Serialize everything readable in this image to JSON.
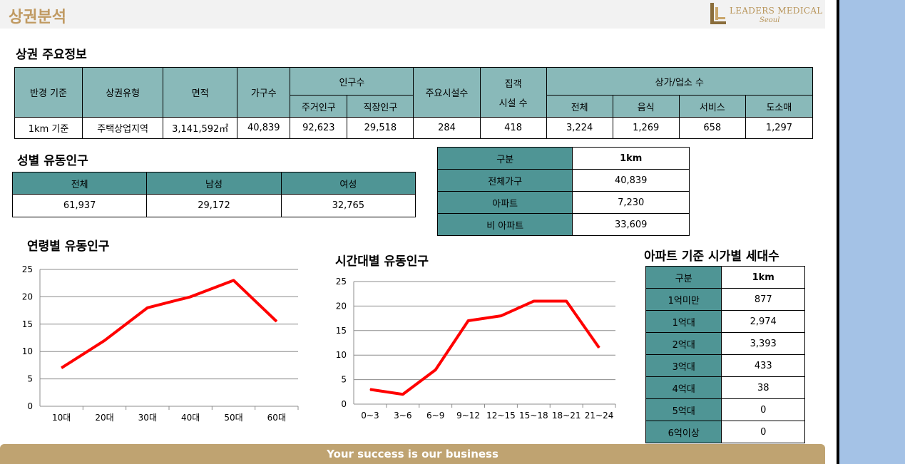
{
  "header": {
    "title": "상권분석",
    "logo_text": "LEADERS MEDICAL",
    "logo_sub": "Seoul"
  },
  "main_info": {
    "title": "상권 주요정보",
    "headers": {
      "radius": "반경 기준",
      "type": "상권유형",
      "area": "면적",
      "households": "가구수",
      "population": "인구수",
      "resident": "주거인구",
      "worker": "직장인구",
      "facilities": "주요시설수",
      "attract_line1": "집객",
      "attract_line2": "시설 수",
      "stores": "상가/업소 수",
      "total": "전체",
      "food": "음식",
      "service": "서비스",
      "retail": "도소매"
    },
    "row": {
      "radius": "1km 기준",
      "type": "주택상업지역",
      "area": "3,141,592㎡",
      "households": "40,839",
      "resident": "92,623",
      "worker": "29,518",
      "facilities": "284",
      "attract": "418",
      "total": "3,224",
      "food": "1,269",
      "service": "658",
      "retail": "1,297"
    }
  },
  "gender": {
    "title": "성별 유동인구",
    "headers": [
      "전체",
      "남성",
      "여성"
    ],
    "values": [
      "61,937",
      "29,172",
      "32,765"
    ]
  },
  "household": {
    "headers": [
      "구분",
      "1km"
    ],
    "rows": [
      [
        "전체가구",
        "40,839"
      ],
      [
        "아파트",
        "7,230"
      ],
      [
        "비 아파트",
        "33,609"
      ]
    ]
  },
  "apt_price": {
    "title": "아파트 기준 시가별 세대수",
    "headers": [
      "구분",
      "1km"
    ],
    "rows": [
      [
        "1억미만",
        "877"
      ],
      [
        "1억대",
        "2,974"
      ],
      [
        "2억대",
        "3,393"
      ],
      [
        "3억대",
        "433"
      ],
      [
        "4억대",
        "38"
      ],
      [
        "5억대",
        "0"
      ],
      [
        "6억이상",
        "0"
      ]
    ]
  },
  "footer": {
    "text": "Your success is our business"
  },
  "chart_data": [
    {
      "type": "line",
      "title": "연령별 유동인구",
      "categories": [
        "10대",
        "20대",
        "30대",
        "40대",
        "50대",
        "60대"
      ],
      "values": [
        7,
        12,
        18,
        20,
        23,
        15.5
      ],
      "ylim": [
        0,
        25
      ],
      "yticks": [
        0,
        5,
        10,
        15,
        20,
        25
      ],
      "grid": true,
      "color": "#ff0000"
    },
    {
      "type": "line",
      "title": "시간대별 유동인구",
      "categories": [
        "0~3",
        "3~6",
        "6~9",
        "9~12",
        "12~15",
        "15~18",
        "18~21",
        "21~24"
      ],
      "values": [
        3,
        2,
        7,
        17,
        18,
        21,
        21,
        11.5
      ],
      "ylim": [
        0,
        25
      ],
      "yticks": [
        0,
        5,
        10,
        15,
        20,
        25
      ],
      "grid": true,
      "color": "#ff0000"
    }
  ]
}
